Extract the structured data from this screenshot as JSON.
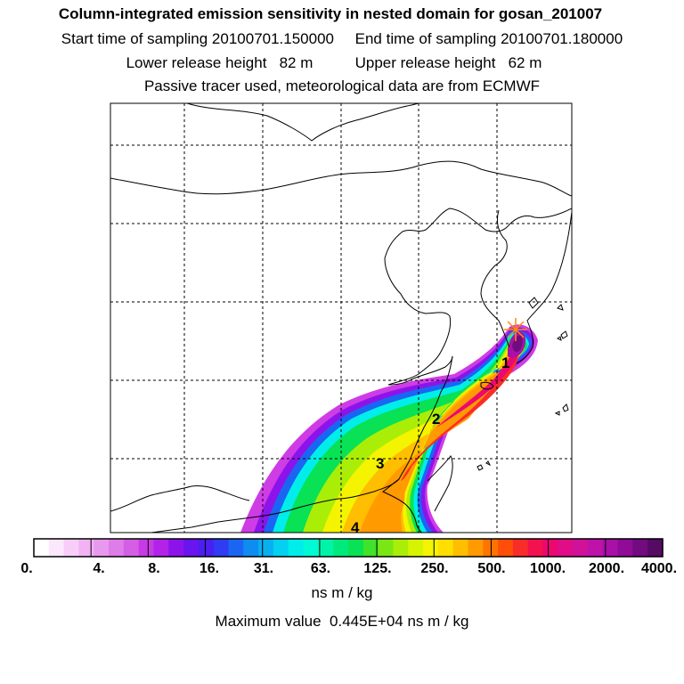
{
  "header": {
    "title": "Column-integrated emission sensitivity in nested domain for gosan_201007",
    "sampling": "Start time of sampling 20100701.150000     End time of sampling 20100701.180000",
    "release": "Lower release height   82 m          Upper release height   62 m",
    "tracer": "Passive tracer used, meteorological data are from ECMWF"
  },
  "map": {
    "markers": [
      {
        "label": "1"
      },
      {
        "label": "2"
      },
      {
        "label": "3"
      },
      {
        "label": "4"
      }
    ],
    "colors": {
      "border": "#000000",
      "coast": "#000000",
      "grid": "#000000",
      "receptor": "#ff8c00"
    }
  },
  "colorbar": {
    "ticks": [
      "0.",
      "4.",
      "8.",
      "16.",
      "31.",
      "63.",
      "125.",
      "250.",
      "500.",
      "1000.",
      "2000.",
      "4000."
    ],
    "units": "ns m / kg",
    "colors": [
      "#ffffff",
      "#fce8fc",
      "#f8cef8",
      "#f2b2f4",
      "#e998ef",
      "#de7ce8",
      "#d45ee4",
      "#c63be4",
      "#b322e8",
      "#8c14ea",
      "#6a14ef",
      "#4b1ef2",
      "#2f3cf4",
      "#1a66f2",
      "#0e8cf2",
      "#08b0f2",
      "#04d0f0",
      "#00eeea",
      "#00fad4",
      "#00f4a8",
      "#00ea7c",
      "#08e254",
      "#40e22a",
      "#7ae614",
      "#aaee08",
      "#d6f402",
      "#f4f400",
      "#ffde00",
      "#ffbe00",
      "#ff9a00",
      "#ff7400",
      "#ff4e08",
      "#fa2c2a",
      "#f4124e",
      "#ec0870",
      "#e00c88",
      "#d0129a",
      "#be12a8",
      "#a810a8",
      "#8e0c96",
      "#720a80",
      "#560a64"
    ]
  },
  "max_value": "Maximum value  0.445E+04 ns m / kg"
}
